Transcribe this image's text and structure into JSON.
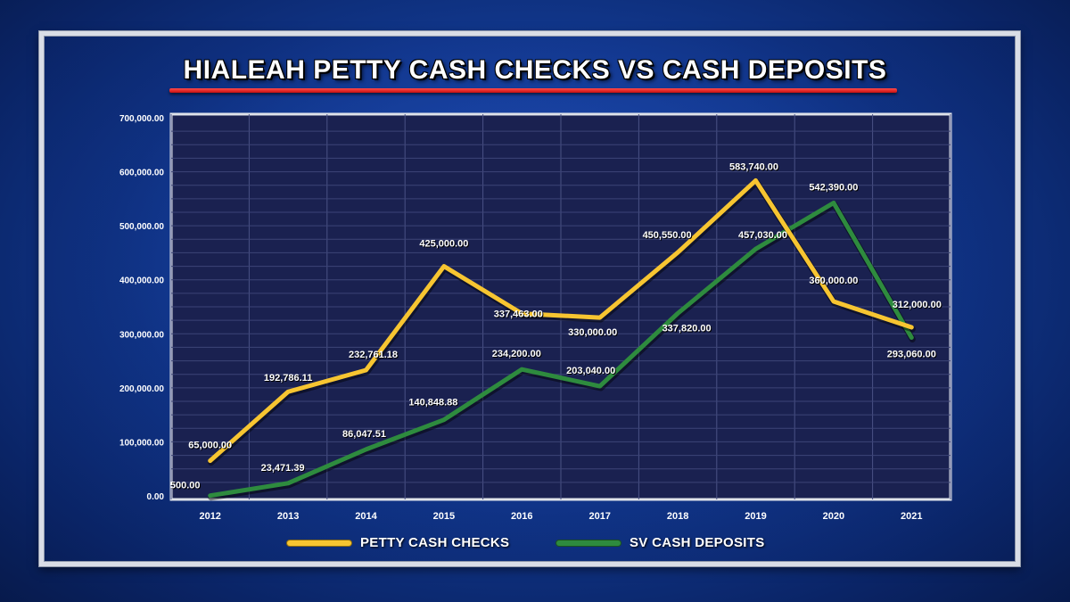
{
  "chart_data": {
    "type": "line",
    "title": "HIALEAH PETTY CASH CHECKS VS CASH DEPOSITS",
    "categories": [
      "2012",
      "2013",
      "2014",
      "2015",
      "2016",
      "2017",
      "2018",
      "2019",
      "2020",
      "2021"
    ],
    "ylim": [
      0,
      700000
    ],
    "yticks": [
      "0.00",
      "100,000.00",
      "200,000.00",
      "300,000.00",
      "400,000.00",
      "500,000.00",
      "600,000.00",
      "700,000.00"
    ],
    "grid": true,
    "legend_position": "bottom",
    "series": [
      {
        "name": "PETTY CASH CHECKS",
        "color": "#f7c531",
        "values": [
          65000,
          192786.11,
          232761.18,
          425000,
          337463,
          330000,
          450550,
          583740,
          360000,
          312000
        ],
        "labels": [
          "65,000.00",
          "192,786.11",
          "232,761.18",
          "425,000.00",
          "337,463.00",
          "330,000.00",
          "450,550.00",
          "583,740.00",
          "360,000.00",
          "312,000.00"
        ]
      },
      {
        "name": "SV CASH DEPOSITS",
        "color": "#2e8b3e",
        "values": [
          500,
          23471.39,
          86047.51,
          140848.88,
          234200,
          203040,
          337820,
          457030,
          542390,
          293060
        ],
        "labels": [
          "500.00",
          "23,471.39",
          "86,047.51",
          "140,848.88",
          "234,200.00",
          "203,040.00",
          "337,820.00",
          "457,030.00",
          "542,390.00",
          "293,060.00"
        ]
      }
    ]
  }
}
